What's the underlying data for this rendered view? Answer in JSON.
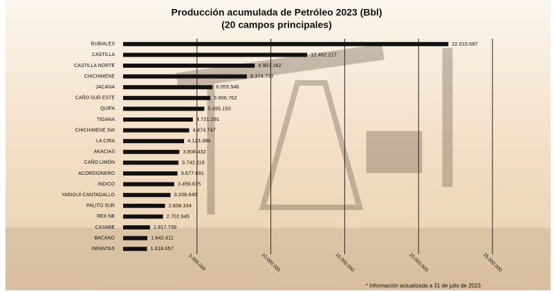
{
  "chart_data": {
    "type": "bar",
    "orientation": "horizontal",
    "title": "Producción acumulada de Petróleo 2023 (Bbl)",
    "subtitle": "(20 campos principales)",
    "note": "* Información actualizada a 31 de julio de 2023",
    "categories": [
      "RUBIALES",
      "CASTILLA",
      "CASTILLA NORTE",
      "CHICHIMENE",
      "JACANA",
      "CAÑO SUR ESTE",
      "QUIFA",
      "TIGANA",
      "CHICHIMENE SW",
      "LA CIRA",
      "AKACIAS",
      "CAÑO LIMÓN",
      "ACORDIONERO",
      "INDICO",
      "YARIGUÍ-CANTAGALLO",
      "PALITO SUR",
      "REX NE",
      "CASABE",
      "BACANO",
      "INFANTAS"
    ],
    "values": [
      22015687,
      12462217,
      8907162,
      8374730,
      6055546,
      5906762,
      5495150,
      4721291,
      4474747,
      4123386,
      3808432,
      3742119,
      3677691,
      3459875,
      3208645,
      2838334,
      2702645,
      1817739,
      1642411,
      1618057
    ],
    "value_labels": [
      "22.015.687",
      "12.462.217",
      "8.907.162",
      "8.374.730",
      "6.055.546",
      "5.906.762",
      "5.495.150",
      "4.721.291",
      "4.474.747",
      "4.123.386",
      "3.808.432",
      "3.742.119",
      "3.677.691",
      "3.459.875",
      "3.208.645",
      "2.838.334",
      "2.702.645",
      "1.817.739",
      "1.642.411",
      "1.618.057"
    ],
    "color": "#111111",
    "xlim": [
      0,
      25000000
    ],
    "xticks": [
      {
        "value": 5000000,
        "label": "5.000.000"
      },
      {
        "value": 10000000,
        "label": "10.000.000"
      },
      {
        "value": 15000000,
        "label": "15.000.000"
      },
      {
        "value": 20000000,
        "label": "20.000.000"
      },
      {
        "value": 25000000,
        "label": "25.000.000"
      }
    ],
    "grid": true
  }
}
